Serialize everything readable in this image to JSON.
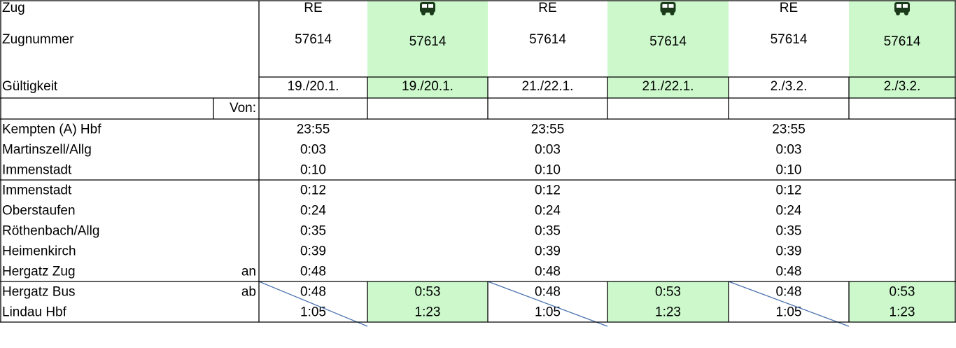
{
  "header": {
    "row_labels": [
      "Zug",
      "Zugnummer",
      "Gültigkeit"
    ],
    "from_label": "Von:"
  },
  "columns": [
    {
      "type": "RE",
      "number": "57614",
      "validity": "19./20.1.",
      "bus": false
    },
    {
      "number": "57614",
      "validity": "19./20.1.",
      "bus": true
    },
    {
      "type": "RE",
      "number": "57614",
      "validity": "21./22.1.",
      "bus": false
    },
    {
      "number": "57614",
      "validity": "21./22.1.",
      "bus": true
    },
    {
      "type": "RE",
      "number": "57614",
      "validity": "2./3.2.",
      "bus": false
    },
    {
      "number": "57614",
      "validity": "2./3.2.",
      "bus": true
    }
  ],
  "sections": [
    {
      "rows": [
        {
          "station": "Kempten (A) Hbf",
          "times": [
            "23:55",
            null,
            "23:55",
            null,
            "23:55",
            null
          ]
        },
        {
          "station": "Martinszell/Allg",
          "times": [
            "0:03",
            null,
            "0:03",
            null,
            "0:03",
            null
          ]
        },
        {
          "station": "Immenstadt",
          "times": [
            "0:10",
            null,
            "0:10",
            null,
            "0:10",
            null
          ]
        }
      ]
    },
    {
      "rows": [
        {
          "station": "Immenstadt",
          "times": [
            "0:12",
            null,
            "0:12",
            null,
            "0:12",
            null
          ]
        },
        {
          "station": "Oberstaufen",
          "times": [
            "0:24",
            null,
            "0:24",
            null,
            "0:24",
            null
          ]
        },
        {
          "station": "Röthenbach/Allg",
          "times": [
            "0:35",
            null,
            "0:35",
            null,
            "0:35",
            null
          ]
        },
        {
          "station": "Heimenkirch",
          "times": [
            "0:39",
            null,
            "0:39",
            null,
            "0:39",
            null
          ]
        },
        {
          "station": "Hergatz Zug",
          "note": "an",
          "times": [
            "0:48",
            null,
            "0:48",
            null,
            "0:48",
            null
          ]
        }
      ]
    },
    {
      "struck_columns": [
        0,
        2,
        4
      ],
      "rows": [
        {
          "station": "Hergatz Bus",
          "note": "ab",
          "times": [
            "0:48",
            "0:53",
            "0:48",
            "0:53",
            "0:48",
            "0:53"
          ]
        },
        {
          "station": "Lindau Hbf",
          "times": [
            "1:05",
            "1:23",
            "1:05",
            "1:23",
            "1:05",
            "1:23"
          ]
        }
      ]
    }
  ]
}
